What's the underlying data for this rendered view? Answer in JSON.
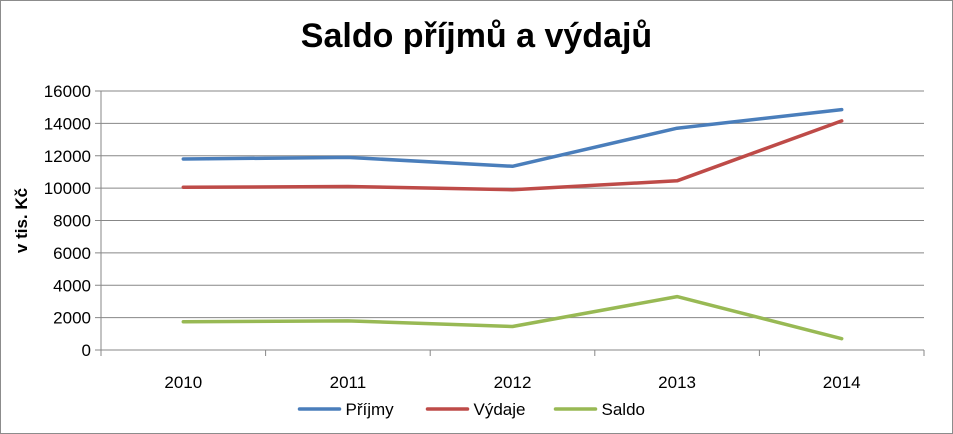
{
  "chart_data": {
    "type": "line",
    "title": "Saldo příjmů a výdajů",
    "xlabel": "",
    "ylabel": "v tis. Kč",
    "categories": [
      "2010",
      "2011",
      "2012",
      "2013",
      "2014"
    ],
    "ylim": [
      0,
      16000
    ],
    "yticks": [
      0,
      2000,
      4000,
      6000,
      8000,
      10000,
      12000,
      14000,
      16000
    ],
    "grid": true,
    "legend_position": "bottom",
    "series": [
      {
        "name": "Příjmy",
        "color": "#4a7ebb",
        "values": [
          11800,
          11900,
          11350,
          13700,
          14850
        ]
      },
      {
        "name": "Výdaje",
        "color": "#be4b48",
        "values": [
          10050,
          10100,
          9900,
          10450,
          14150
        ]
      },
      {
        "name": "Saldo",
        "color": "#98b954",
        "values": [
          1750,
          1800,
          1450,
          3300,
          700
        ]
      }
    ]
  }
}
